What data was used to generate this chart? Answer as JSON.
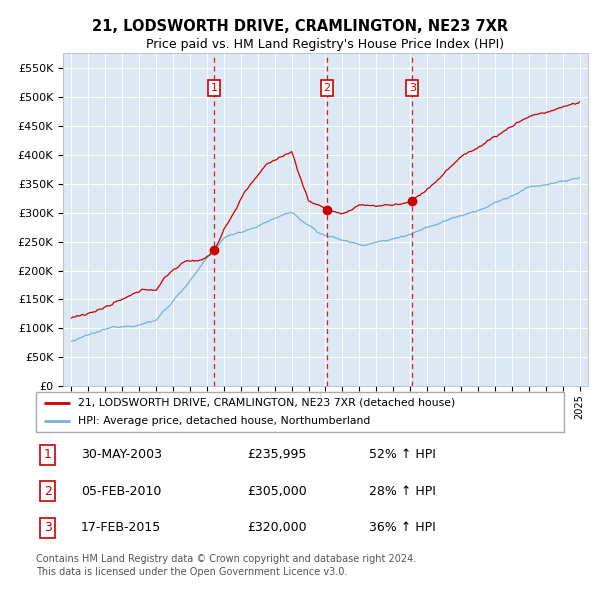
{
  "title": "21, LODSWORTH DRIVE, CRAMLINGTON, NE23 7XR",
  "subtitle": "Price paid vs. HM Land Registry's House Price Index (HPI)",
  "background_color": "#dce9f5",
  "plot_bg_color": "#dce9f5",
  "red_line_label": "21, LODSWORTH DRIVE, CRAMLINGTON, NE23 7XR (detached house)",
  "blue_line_label": "HPI: Average price, detached house, Northumberland",
  "transactions": [
    {
      "num": 1,
      "date": "30-MAY-2003",
      "price": "£235,995",
      "change": "52% ↑ HPI",
      "year": 2003.41,
      "price_val": 235995
    },
    {
      "num": 2,
      "date": "05-FEB-2010",
      "price": "£305,000",
      "change": "28% ↑ HPI",
      "year": 2010.09,
      "price_val": 305000
    },
    {
      "num": 3,
      "date": "17-FEB-2015",
      "price": "£320,000",
      "change": "36% ↑ HPI",
      "year": 2015.12,
      "price_val": 320000
    }
  ],
  "footnote1": "Contains HM Land Registry data © Crown copyright and database right 2024.",
  "footnote2": "This data is licensed under the Open Government Licence v3.0.",
  "ylim": [
    0,
    575000
  ],
  "xlim_start": 1994.5,
  "xlim_end": 2025.5,
  "yticks": [
    0,
    50000,
    100000,
    150000,
    200000,
    250000,
    300000,
    350000,
    400000,
    450000,
    500000,
    550000
  ]
}
